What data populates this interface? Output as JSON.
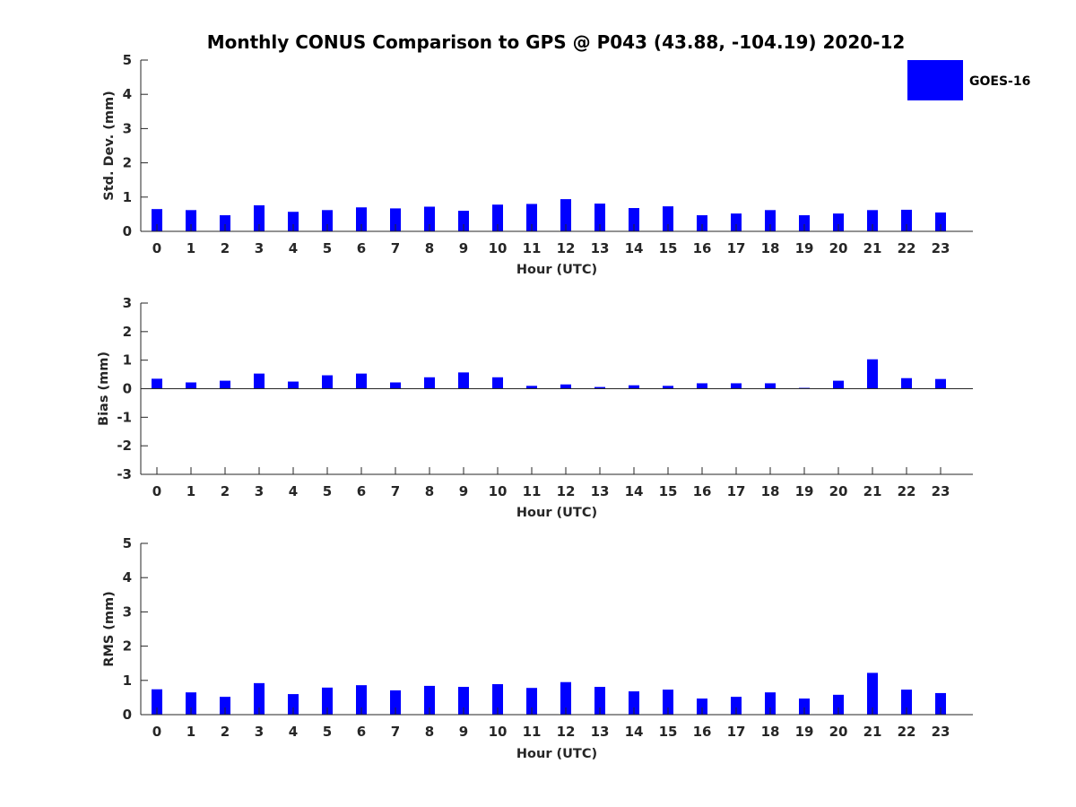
{
  "figure": {
    "title": "Monthly CONUS Comparison to GPS @ P043 (43.88, -104.19) 2020-12"
  },
  "legend": {
    "label": "GOES-16",
    "color": "#0000ff",
    "placement": "top-right"
  },
  "chart_data": [
    {
      "type": "bar",
      "name": "std-dev",
      "xlabel": "Hour (UTC)",
      "ylabel": "Std. Dev. (mm)",
      "ylim": [
        0,
        5
      ],
      "yticks": [
        0,
        1,
        2,
        3,
        4,
        5
      ],
      "grid": false,
      "categories": [
        "0",
        "1",
        "2",
        "3",
        "4",
        "5",
        "6",
        "7",
        "8",
        "9",
        "10",
        "11",
        "12",
        "13",
        "14",
        "15",
        "16",
        "17",
        "18",
        "19",
        "20",
        "21",
        "22",
        "23"
      ],
      "series": [
        {
          "name": "GOES-16",
          "color": "#0000ff",
          "values": [
            0.65,
            0.62,
            0.47,
            0.76,
            0.57,
            0.62,
            0.7,
            0.67,
            0.72,
            0.6,
            0.78,
            0.8,
            0.94,
            0.81,
            0.68,
            0.73,
            0.47,
            0.52,
            0.62,
            0.47,
            0.52,
            0.62,
            0.63,
            0.55
          ]
        }
      ]
    },
    {
      "type": "bar",
      "name": "bias",
      "xlabel": "Hour (UTC)",
      "ylabel": "Bias (mm)",
      "ylim": [
        -3,
        3
      ],
      "yticks": [
        -3,
        -2,
        -1,
        0,
        1,
        2,
        3
      ],
      "grid": false,
      "categories": [
        "0",
        "1",
        "2",
        "3",
        "4",
        "5",
        "6",
        "7",
        "8",
        "9",
        "10",
        "11",
        "12",
        "13",
        "14",
        "15",
        "16",
        "17",
        "18",
        "19",
        "20",
        "21",
        "22",
        "23"
      ],
      "series": [
        {
          "name": "GOES-16",
          "color": "#0000ff",
          "values": [
            0.35,
            0.22,
            0.28,
            0.53,
            0.25,
            0.47,
            0.53,
            0.22,
            0.4,
            0.57,
            0.4,
            0.1,
            0.15,
            0.06,
            0.12,
            0.1,
            0.19,
            0.19,
            0.19,
            0.03,
            0.28,
            1.03,
            0.37,
            0.34
          ]
        }
      ]
    },
    {
      "type": "bar",
      "name": "rms",
      "xlabel": "Hour (UTC)",
      "ylabel": "RMS (mm)",
      "ylim": [
        0,
        5
      ],
      "yticks": [
        0,
        1,
        2,
        3,
        4,
        5
      ],
      "grid": false,
      "categories": [
        "0",
        "1",
        "2",
        "3",
        "4",
        "5",
        "6",
        "7",
        "8",
        "9",
        "10",
        "11",
        "12",
        "13",
        "14",
        "15",
        "16",
        "17",
        "18",
        "19",
        "20",
        "21",
        "22",
        "23"
      ],
      "series": [
        {
          "name": "GOES-16",
          "color": "#0000ff",
          "values": [
            0.74,
            0.65,
            0.52,
            0.92,
            0.6,
            0.79,
            0.86,
            0.71,
            0.84,
            0.81,
            0.89,
            0.78,
            0.95,
            0.81,
            0.68,
            0.73,
            0.47,
            0.52,
            0.65,
            0.47,
            0.58,
            1.22,
            0.73,
            0.63
          ]
        }
      ]
    }
  ]
}
